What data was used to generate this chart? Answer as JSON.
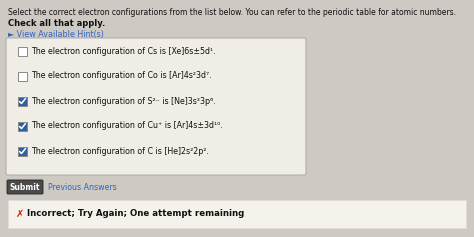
{
  "bg_color": "#cec9c3",
  "header_text1": "Select the correct electron configurations from the list below. You can refer to the periodic table for atomic numbers.",
  "subheader_text": "Check all that apply.",
  "hint_text": "► View Available Hint(s)",
  "hint_color": "#3366bb",
  "box_bg": "#f0ece6",
  "box_border": "#aaaaaa",
  "items": [
    {
      "checked": false,
      "text": "The electron configuration of Cs is [Xe]6s±5d¹."
    },
    {
      "checked": false,
      "text": "The electron configuration of Co is [Ar]4s²3d⁷."
    },
    {
      "checked": true,
      "text": "The electron configuration of S²⁻ is [Ne]3s²3p⁶."
    },
    {
      "checked": true,
      "text": "The electron configuration of Cu⁺ is [Ar]4s±3d¹⁰."
    },
    {
      "checked": true,
      "text": "The electron configuration of C is [He]2s²2p²."
    }
  ],
  "check_color": "#2e5fa3",
  "submit_bg": "#4a4a4a",
  "submit_border": "#222222",
  "submit_text": "Submit",
  "prev_text": "Previous Answers",
  "prev_color": "#3366bb",
  "error_color": "#cc2200",
  "error_text": "Incorrect; Try Again; One attempt remaining",
  "error_box_bg": "#f5f1eb",
  "error_box_border": "#dddddd"
}
